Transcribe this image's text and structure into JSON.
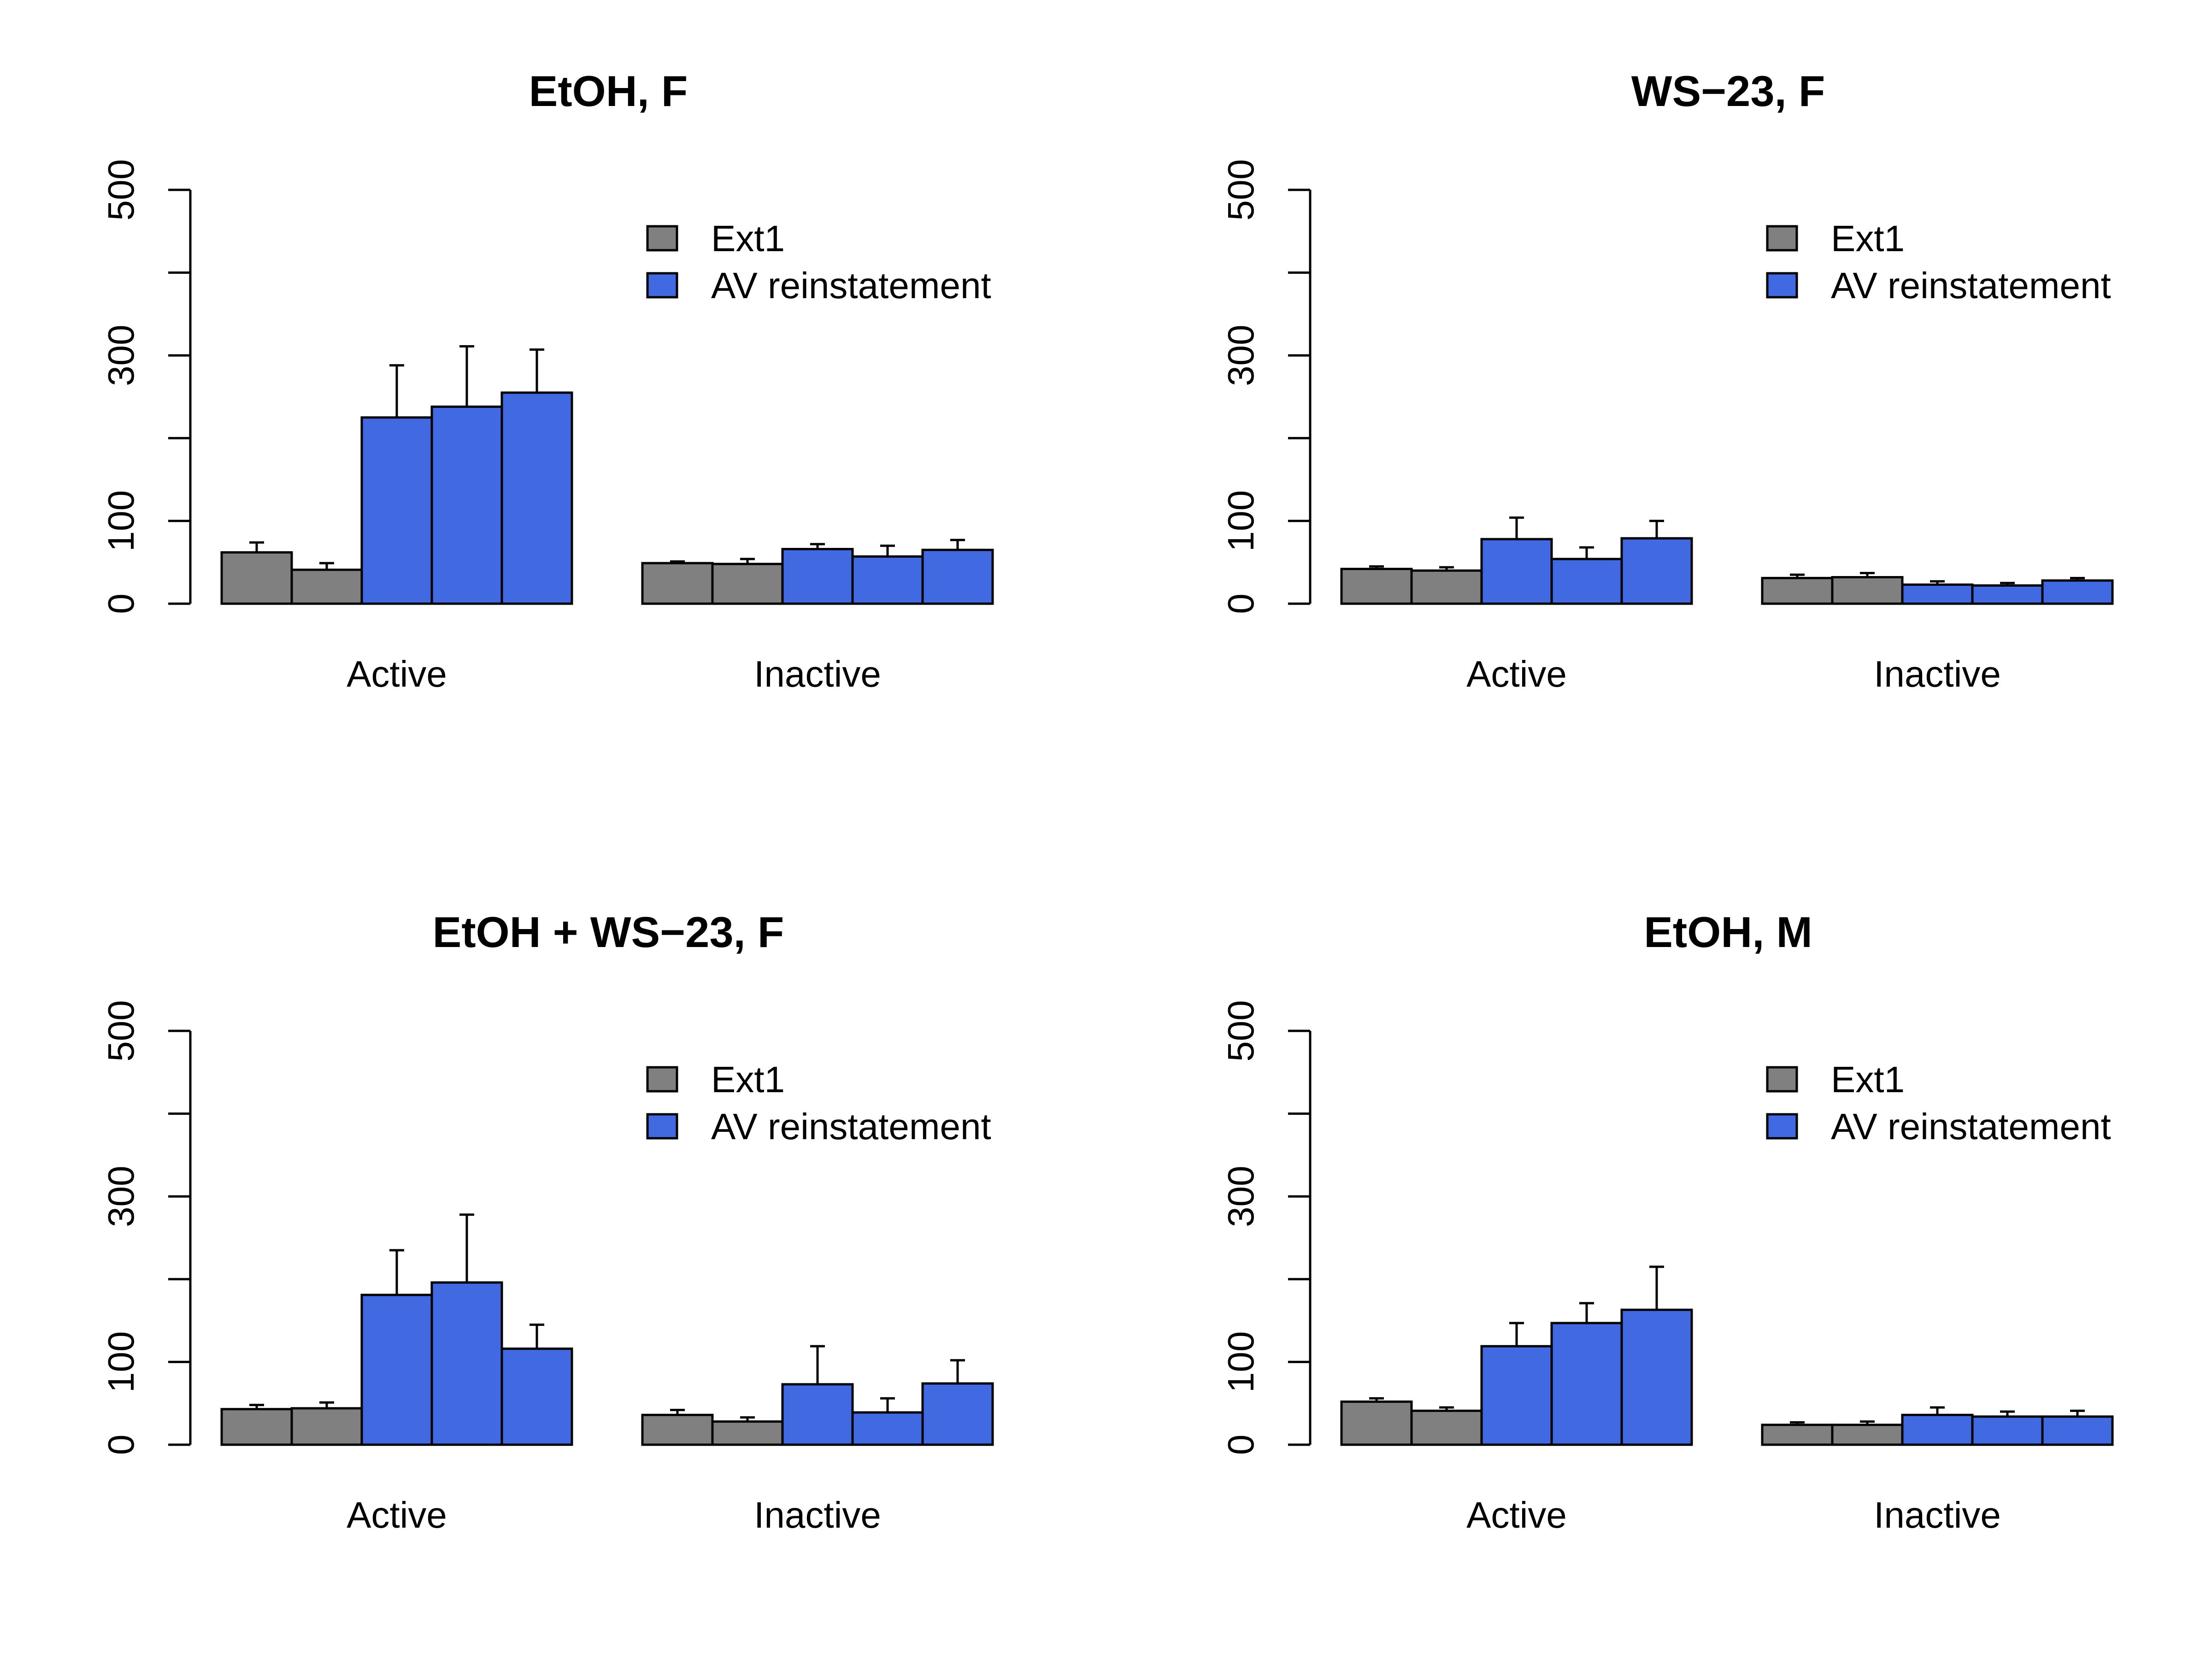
{
  "legend": {
    "items": [
      {
        "label": "Ext1",
        "color": "#808080"
      },
      {
        "label": "AV reinstatement",
        "color": "#4169E1"
      }
    ]
  },
  "colors": {
    "ext": "#808080",
    "av": "#4169E1",
    "axis": "#000000"
  },
  "chart_data": [
    {
      "type": "bar",
      "title": "EtOH, F",
      "ylim": [
        0,
        500
      ],
      "yticks": [
        0,
        100,
        300,
        500
      ],
      "groups": [
        "Active",
        "Inactive"
      ],
      "series": [
        {
          "name": "Ext1",
          "values": [
            [
              62,
              41
            ],
            [
              49,
              48
            ]
          ],
          "errors": [
            [
              12,
              8
            ],
            [
              2,
              6
            ]
          ]
        },
        {
          "name": "AV reinstatement",
          "values": [
            [
              225,
              238,
              255
            ],
            [
              66,
              57,
              65
            ]
          ],
          "errors": [
            [
              63,
              73,
              52
            ],
            [
              6,
              13,
              12
            ]
          ]
        }
      ],
      "legend_position": "top-right"
    },
    {
      "type": "bar",
      "title": "WS−23, F",
      "ylim": [
        0,
        500
      ],
      "yticks": [
        0,
        100,
        300,
        500
      ],
      "groups": [
        "Active",
        "Inactive"
      ],
      "series": [
        {
          "name": "Ext1",
          "values": [
            [
              42,
              40
            ],
            [
              31,
              32
            ]
          ],
          "errors": [
            [
              3,
              4
            ],
            [
              4,
              5
            ]
          ]
        },
        {
          "name": "AV reinstatement",
          "values": [
            [
              78,
              54,
              79
            ],
            [
              23,
              22,
              28
            ]
          ],
          "errors": [
            [
              26,
              14,
              21
            ],
            [
              4,
              3,
              3
            ]
          ]
        }
      ],
      "legend_position": "top-right"
    },
    {
      "type": "bar",
      "title": "EtOH + WS−23, F",
      "ylim": [
        0,
        500
      ],
      "yticks": [
        0,
        100,
        300,
        500
      ],
      "groups": [
        "Active",
        "Inactive"
      ],
      "series": [
        {
          "name": "Ext1",
          "values": [
            [
              43,
              44
            ],
            [
              36,
              28
            ]
          ],
          "errors": [
            [
              5,
              7
            ],
            [
              6,
              5
            ]
          ]
        },
        {
          "name": "AV reinstatement",
          "values": [
            [
              181,
              196,
              116
            ],
            [
              73,
              39,
              74
            ]
          ],
          "errors": [
            [
              54,
              82,
              29
            ],
            [
              46,
              17,
              28
            ]
          ]
        }
      ],
      "legend_position": "top-right"
    },
    {
      "type": "bar",
      "title": "EtOH, M",
      "ylim": [
        0,
        500
      ],
      "yticks": [
        0,
        100,
        300,
        500
      ],
      "groups": [
        "Active",
        "Inactive"
      ],
      "series": [
        {
          "name": "Ext1",
          "values": [
            [
              52,
              41
            ],
            [
              24,
              24
            ]
          ],
          "errors": [
            [
              4,
              4
            ],
            [
              3,
              4
            ]
          ]
        },
        {
          "name": "AV reinstatement",
          "values": [
            [
              119,
              147,
              163
            ],
            [
              36,
              34,
              34
            ]
          ],
          "errors": [
            [
              28,
              24,
              52
            ],
            [
              9,
              6,
              7
            ]
          ]
        }
      ],
      "legend_position": "top-right"
    }
  ]
}
